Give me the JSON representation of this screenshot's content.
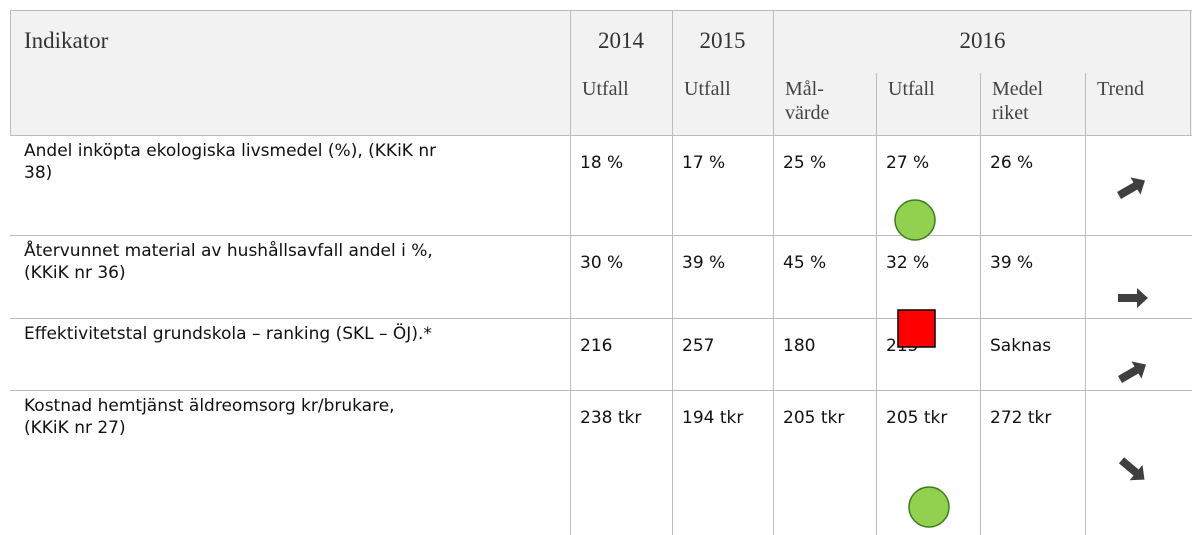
{
  "header": {
    "indicator": "Indikator",
    "years": [
      "2014",
      "2015",
      "2016"
    ],
    "subheaders": [
      "Utfall",
      "Utfall",
      "Mål-\nvärde",
      "Utfall",
      "Medel\nriket",
      "Trend"
    ]
  },
  "rows": [
    {
      "label": [
        "Andel inköpta ekologiska livsmedel (%), (KKiK nr",
        "38)"
      ],
      "values": [
        "18 %",
        "17 %",
        "25 %",
        "27 %",
        "26 %"
      ]
    },
    {
      "label": [
        "Återvunnet material av hushållsavfall andel i %,",
        "(KKiK nr 36)"
      ],
      "values": [
        "30 %",
        "39 %",
        "45 %",
        "32 %",
        "39 %"
      ]
    },
    {
      "label": [
        "Effektivitetstal grundskola – ranking (SKL – ÖJ).*"
      ],
      "values": [
        "216",
        "257",
        "180",
        "215",
        "Saknas"
      ]
    },
    {
      "label": [
        "Kostnad hemtjänst äldreomsorg kr/brukare,",
        "(KKiK nr 27)"
      ],
      "values": [
        "238 tkr",
        "194 tkr",
        "205 tkr",
        "205 tkr",
        "272 tkr"
      ]
    }
  ]
}
